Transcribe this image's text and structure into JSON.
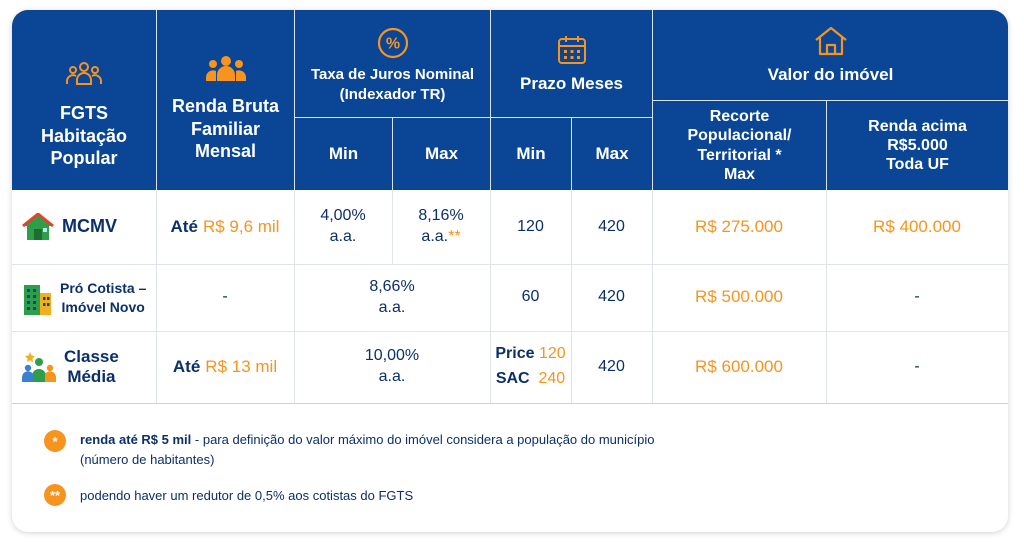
{
  "header": {
    "col1": [
      "FGTS",
      "Habitação",
      "Popular"
    ],
    "col2": [
      "Renda Bruta",
      "Familiar",
      "Mensal"
    ],
    "col3": {
      "title_line1": "Taxa de Juros Nominal",
      "title_line2": "(Indexador TR)",
      "min": "Min",
      "max": "Max"
    },
    "col4": {
      "title": "Prazo Meses",
      "min": "Min",
      "max": "Max"
    },
    "col5": {
      "title": "Valor do imóvel",
      "sub1": [
        "Recorte",
        "Populacional/",
        "Territorial *",
        "Max"
      ],
      "sub2": [
        "Renda acima",
        "R$5.000",
        "Toda UF"
      ]
    }
  },
  "rows": [
    {
      "icon": "house-icon",
      "program": [
        "MCMV"
      ],
      "renda_prefix": "Até",
      "renda_value": "R$ 9,6 mil",
      "taxa_min": [
        "4,00%",
        "a.a."
      ],
      "taxa_max": [
        "8,16%",
        "a.a."
      ],
      "taxa_max_mark": "**",
      "prazo_min": "120",
      "prazo_max": "420",
      "valor_recorte": "R$ 275.000",
      "valor_renda": "R$ 400.000"
    },
    {
      "icon": "building-icon",
      "program": [
        "Pró Cotista –",
        "Imóvel Novo"
      ],
      "renda": "-",
      "taxa": [
        "8,66%",
        "a.a."
      ],
      "prazo_min": "60",
      "prazo_max": "420",
      "valor_recorte": "R$ 500.000",
      "valor_renda": "-"
    },
    {
      "icon": "family-icon",
      "program": [
        "Classe",
        "Média"
      ],
      "renda_prefix": "Até",
      "renda_value": "R$ 13 mil",
      "taxa": [
        "10,00%",
        "a.a."
      ],
      "prazo_price_label": "Price",
      "prazo_price_value": "120",
      "prazo_sac_label": "SAC",
      "prazo_sac_value": "240",
      "prazo_max": "420",
      "valor_recorte": "R$ 600.000",
      "valor_renda": "-"
    }
  ],
  "notes": [
    {
      "badge": "*",
      "bold": "renda até R$ 5 mil",
      "text": " - para definição do valor máximo do imóvel considera a população do município",
      "line2": "(número de habitantes)"
    },
    {
      "badge": "**",
      "text": "podendo haver um redutor de 0,5% aos cotistas do FGTS"
    }
  ],
  "colors": {
    "header_bg": "#0b4595",
    "accent": "#f7941d",
    "text": "#0b2f6b"
  }
}
